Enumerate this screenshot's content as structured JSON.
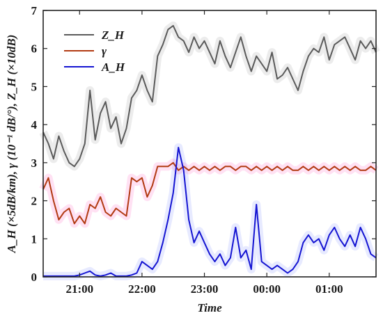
{
  "chart_data": {
    "type": "line",
    "xlabel": "Time",
    "ylabel": "A_H (×5dB/km), γ (10⁻¹ dB/°), Z_H (×10dB)",
    "ylim": [
      0,
      7
    ],
    "yticks": [
      0,
      1,
      2,
      3,
      4,
      5,
      6,
      7
    ],
    "xlim": [
      "20:25",
      "01:45"
    ],
    "xticks": [
      "21:00",
      "22:00",
      "23:00",
      "00:00",
      "01:00"
    ],
    "legend_position": "top-left",
    "grid": false,
    "series": [
      {
        "name": "Z_H",
        "color": "#5a5a5a",
        "x": [
          "20:25",
          "20:30",
          "20:35",
          "20:40",
          "20:45",
          "20:50",
          "20:55",
          "21:00",
          "21:05",
          "21:10",
          "21:15",
          "21:20",
          "21:25",
          "21:30",
          "21:35",
          "21:40",
          "21:45",
          "21:50",
          "21:55",
          "22:00",
          "22:05",
          "22:10",
          "22:15",
          "22:20",
          "22:25",
          "22:30",
          "22:35",
          "22:40",
          "22:45",
          "22:50",
          "22:55",
          "23:00",
          "23:05",
          "23:10",
          "23:15",
          "23:20",
          "23:25",
          "23:30",
          "23:35",
          "23:40",
          "23:45",
          "23:50",
          "23:55",
          "00:00",
          "00:05",
          "00:10",
          "00:15",
          "00:20",
          "00:25",
          "00:30",
          "00:35",
          "00:40",
          "00:45",
          "00:50",
          "00:55",
          "01:00",
          "01:05",
          "01:10",
          "01:15",
          "01:20",
          "01:25",
          "01:30",
          "01:35",
          "01:40",
          "01:45"
        ],
        "values": [
          3.8,
          3.5,
          3.1,
          3.7,
          3.3,
          3.0,
          2.9,
          3.1,
          3.5,
          4.9,
          3.6,
          4.3,
          4.6,
          3.9,
          4.2,
          3.5,
          3.9,
          4.7,
          4.9,
          5.3,
          4.9,
          4.6,
          5.8,
          6.1,
          6.5,
          6.6,
          6.3,
          6.2,
          5.9,
          6.3,
          6.0,
          6.2,
          5.9,
          5.6,
          6.2,
          5.8,
          5.5,
          5.9,
          6.3,
          5.8,
          5.4,
          5.8,
          5.6,
          5.4,
          5.9,
          5.2,
          5.3,
          5.5,
          5.2,
          4.9,
          5.4,
          5.8,
          6.0,
          5.9,
          6.3,
          5.7,
          6.1,
          6.2,
          6.3,
          6.0,
          5.7,
          6.2,
          6.0,
          6.2,
          5.9
        ]
      },
      {
        "name": "γ",
        "color": "#b23a12",
        "x": [
          "20:25",
          "20:30",
          "20:35",
          "20:40",
          "20:45",
          "20:50",
          "20:55",
          "21:00",
          "21:05",
          "21:10",
          "21:15",
          "21:20",
          "21:25",
          "21:30",
          "21:35",
          "21:40",
          "21:45",
          "21:50",
          "21:55",
          "22:00",
          "22:05",
          "22:10",
          "22:15",
          "22:20",
          "22:25",
          "22:30",
          "22:35",
          "22:40",
          "22:45",
          "22:50",
          "22:55",
          "23:00",
          "23:05",
          "23:10",
          "23:15",
          "23:20",
          "23:25",
          "23:30",
          "23:35",
          "23:40",
          "23:45",
          "23:50",
          "23:55",
          "00:00",
          "00:05",
          "00:10",
          "00:15",
          "00:20",
          "00:25",
          "00:30",
          "00:35",
          "00:40",
          "00:45",
          "00:50",
          "00:55",
          "01:00",
          "01:05",
          "01:10",
          "01:15",
          "01:20",
          "01:25",
          "01:30",
          "01:35",
          "01:40",
          "01:45"
        ],
        "values": [
          2.3,
          2.6,
          2.0,
          1.5,
          1.7,
          1.8,
          1.4,
          1.6,
          1.4,
          1.9,
          1.8,
          2.1,
          1.7,
          1.6,
          1.8,
          1.7,
          1.6,
          2.6,
          2.5,
          2.6,
          2.1,
          2.4,
          2.9,
          2.9,
          2.9,
          3.0,
          2.8,
          2.9,
          2.8,
          2.9,
          2.8,
          2.9,
          2.8,
          2.9,
          2.8,
          2.9,
          2.9,
          2.8,
          2.9,
          2.9,
          2.8,
          2.9,
          2.8,
          2.9,
          2.8,
          2.9,
          2.8,
          2.9,
          2.8,
          2.8,
          2.9,
          2.8,
          2.9,
          2.8,
          2.9,
          2.8,
          2.9,
          2.8,
          2.9,
          2.8,
          2.9,
          2.8,
          2.8,
          2.9,
          2.8
        ]
      },
      {
        "name": "A_H",
        "color": "#1414d2",
        "x": [
          "20:25",
          "20:30",
          "20:35",
          "20:40",
          "20:45",
          "20:50",
          "20:55",
          "21:00",
          "21:05",
          "21:10",
          "21:15",
          "21:20",
          "21:25",
          "21:30",
          "21:35",
          "21:40",
          "21:45",
          "21:50",
          "21:55",
          "22:00",
          "22:05",
          "22:10",
          "22:15",
          "22:20",
          "22:25",
          "22:30",
          "22:35",
          "22:40",
          "22:45",
          "22:50",
          "22:55",
          "23:00",
          "23:05",
          "23:10",
          "23:15",
          "23:20",
          "23:25",
          "23:30",
          "23:35",
          "23:40",
          "23:45",
          "23:50",
          "23:55",
          "00:00",
          "00:05",
          "00:10",
          "00:15",
          "00:20",
          "00:25",
          "00:30",
          "00:35",
          "00:40",
          "00:45",
          "00:50",
          "00:55",
          "01:00",
          "01:05",
          "01:10",
          "01:15",
          "01:20",
          "01:25",
          "01:30",
          "01:35",
          "01:40",
          "01:45"
        ],
        "values": [
          0.02,
          0.02,
          0.02,
          0.02,
          0.02,
          0.02,
          0.02,
          0.05,
          0.1,
          0.15,
          0.05,
          0.02,
          0.05,
          0.1,
          0.02,
          0.02,
          0.02,
          0.05,
          0.1,
          0.4,
          0.3,
          0.2,
          0.4,
          0.9,
          1.5,
          2.2,
          3.4,
          2.8,
          1.5,
          0.9,
          1.2,
          0.9,
          0.6,
          0.4,
          0.6,
          0.3,
          0.5,
          1.3,
          0.5,
          0.7,
          0.2,
          1.9,
          0.4,
          0.3,
          0.2,
          0.3,
          0.2,
          0.1,
          0.2,
          0.4,
          0.9,
          1.1,
          0.9,
          1.0,
          0.7,
          1.1,
          1.3,
          1.0,
          0.8,
          1.1,
          0.8,
          1.3,
          1.0,
          0.6,
          0.5
        ]
      }
    ]
  }
}
